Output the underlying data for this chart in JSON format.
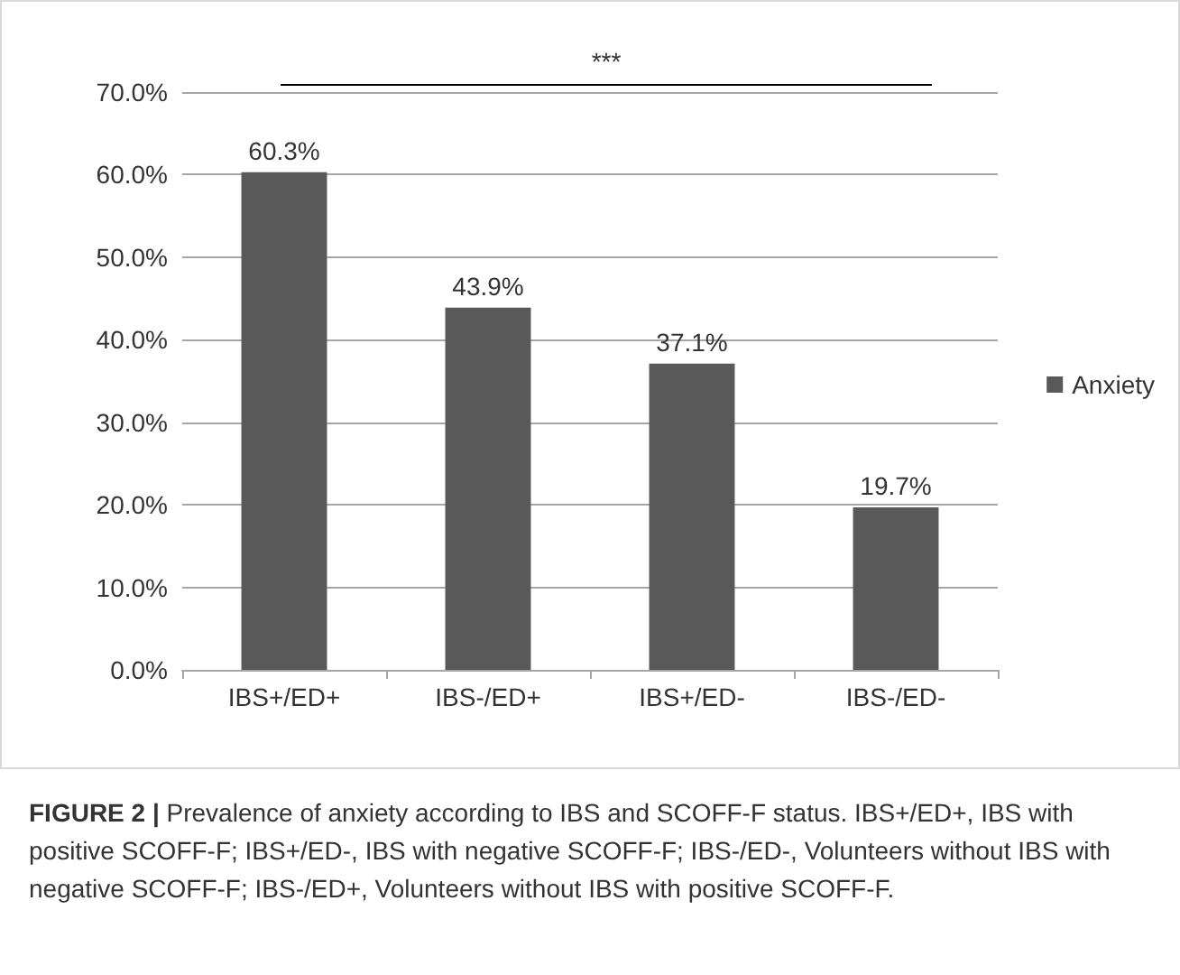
{
  "chart_data": {
    "type": "bar",
    "categories": [
      "IBS+/ED+",
      "IBS-/ED+",
      "IBS+/ED-",
      "IBS-/ED-"
    ],
    "series": [
      {
        "name": "Anxiety",
        "color": "#595959",
        "values": [
          60.3,
          43.9,
          37.1,
          19.7
        ],
        "value_labels": [
          "60.3%",
          "43.9%",
          "37.1%",
          "19.7%"
        ]
      }
    ],
    "ylim": [
      0,
      70
    ],
    "yticks": [
      {
        "value": 0,
        "label": "0.0%"
      },
      {
        "value": 10,
        "label": "10.0%"
      },
      {
        "value": 20,
        "label": "20.0%"
      },
      {
        "value": 30,
        "label": "30.0%"
      },
      {
        "value": 40,
        "label": "40.0%"
      },
      {
        "value": 50,
        "label": "50.0%"
      },
      {
        "value": 60,
        "label": "60.0%"
      },
      {
        "value": 70,
        "label": "70.0%"
      }
    ],
    "grid": "y",
    "legend": "right",
    "annotations": [
      "***",
      "FIGURE 2 | Prevalence of anxiety according to IBS and SCOFF-F status. IBS+/ED+, IBS with positive SCOFF-F; IBS+/ED-, IBS with negative SCOFF-F; IBS-/ED-, Volunteers without IBS with negative SCOFF-F; IBS-/ED+, Volunteers without IBS with positive SCOFF-F."
    ]
  }
}
